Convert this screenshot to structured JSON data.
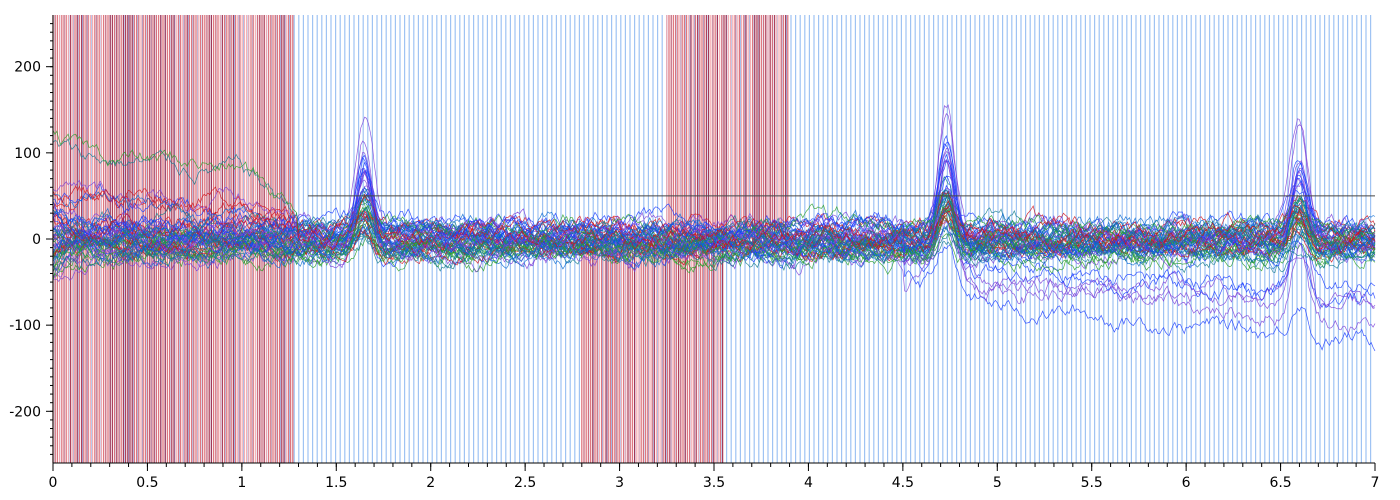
{
  "chart_data": {
    "type": "line",
    "title": "",
    "xlabel": "",
    "ylabel": "",
    "xlim": [
      0,
      7
    ],
    "ylim": [
      -260,
      260
    ],
    "x_ticks": [
      {
        "value": 0,
        "label": "0"
      },
      {
        "value": 0.5,
        "label": "0.5"
      },
      {
        "value": 1,
        "label": "1"
      },
      {
        "value": 1.5,
        "label": "1.5"
      },
      {
        "value": 2,
        "label": "2"
      },
      {
        "value": 2.5,
        "label": "2.5"
      },
      {
        "value": 3,
        "label": "3"
      },
      {
        "value": 3.5,
        "label": "3.5"
      },
      {
        "value": 4,
        "label": "4"
      },
      {
        "value": 4.5,
        "label": "4.5"
      },
      {
        "value": 5,
        "label": "5"
      },
      {
        "value": 5.5,
        "label": "5.5"
      },
      {
        "value": 6,
        "label": "6"
      },
      {
        "value": 6.5,
        "label": "6.5"
      },
      {
        "value": 7,
        "label": "7"
      }
    ],
    "y_ticks": [
      {
        "value": 200,
        "label": "200"
      },
      {
        "value": 100,
        "label": "100"
      },
      {
        "value": 0,
        "label": "0"
      },
      {
        "value": -100,
        "label": "-100"
      },
      {
        "value": -200,
        "label": "-200"
      }
    ],
    "reference_line_y": 50,
    "background_bands": [
      {
        "from": 0,
        "to": 1.27,
        "color": "#d9606a"
      },
      {
        "from": 2.8,
        "to": 3.55,
        "color": "#d9606a"
      },
      {
        "from": 3.25,
        "to": 3.9,
        "color": "#d9606a"
      }
    ],
    "background_bar_color": "#9fc3f3",
    "series_colors": [
      "#1a3cff",
      "#2aa02a",
      "#d0101a",
      "#7b3fd8",
      "#127a8a",
      "#0a6ad0"
    ],
    "peaks": [
      {
        "x": 1.65,
        "y": 135
      },
      {
        "x": 4.73,
        "y": 170
      },
      {
        "x": 6.6,
        "y": 140
      }
    ],
    "trends": [
      {
        "x": 0,
        "y": 130
      },
      {
        "x": 1.0,
        "y": 110
      },
      {
        "x": 1.5,
        "y": 20
      },
      {
        "x": 4.0,
        "y": 0
      },
      {
        "x": 5.0,
        "y": -80
      },
      {
        "x": 7.0,
        "y": -130
      }
    ]
  }
}
